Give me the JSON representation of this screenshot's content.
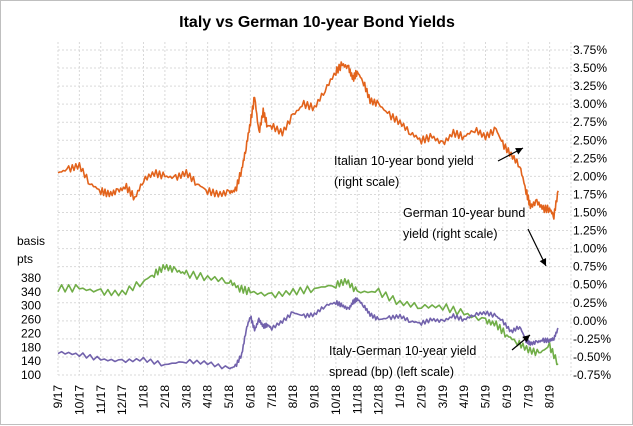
{
  "chart_data": {
    "type": "line",
    "title": "Italy vs German 10-year Bond Yields",
    "x_tick_labels": [
      "9/17",
      "10/17",
      "11/17",
      "12/17",
      "1/18",
      "2/18",
      "3/18",
      "4/18",
      "5/18",
      "6/18",
      "7/18",
      "8/18",
      "9/18",
      "10/18",
      "11/18",
      "12/18",
      "1/19",
      "2/19",
      "3/19",
      "4/19",
      "5/19",
      "6/19",
      "7/19",
      "8/19"
    ],
    "right_axis": {
      "tick_labels": [
        "3.75%",
        "3.50%",
        "3.25%",
        "3.00%",
        "2.75%",
        "2.50%",
        "2.25%",
        "2.00%",
        "1.75%",
        "1.50%",
        "1.25%",
        "1.00%",
        "0.75%",
        "0.50%",
        "0.25%",
        "0.00%",
        "-0.25%",
        "-0.50%",
        "-0.75%"
      ],
      "ylim": [
        -0.75,
        3.75
      ],
      "unit": "%"
    },
    "left_axis": {
      "title_lines": [
        "basis",
        "pts"
      ],
      "tick_labels": [
        "380",
        "340",
        "300",
        "260",
        "220",
        "180",
        "140",
        "100"
      ],
      "ylim": [
        100,
        380
      ]
    },
    "series": [
      {
        "name": "Italian 10-year bond yield",
        "axis": "right",
        "color": "#e2631c",
        "x": [
          0,
          0.5,
          1,
          1.5,
          2,
          2.4,
          2.8,
          3.2,
          3.6,
          4,
          4.5,
          5,
          5.5,
          6,
          6.5,
          7,
          7.5,
          8,
          8.3,
          8.6,
          8.8,
          9.0,
          9.2,
          9.4,
          9.6,
          9.8,
          10,
          10.5,
          11,
          11.5,
          12,
          12.5,
          13,
          13.3,
          13.6,
          13.8,
          14,
          14.3,
          14.6,
          15,
          15.5,
          16,
          16.5,
          17,
          17.5,
          18,
          18.5,
          19,
          19.5,
          20,
          20.5,
          20.8,
          21.2,
          21.6,
          21.9,
          22.1,
          22.4,
          22.7,
          23,
          23.2,
          23.4
        ],
        "y": [
          2.05,
          2.1,
          2.15,
          1.9,
          1.8,
          1.75,
          1.8,
          1.85,
          1.7,
          1.95,
          2.05,
          2.0,
          1.98,
          2.05,
          1.9,
          1.8,
          1.75,
          1.78,
          1.8,
          2.1,
          2.4,
          2.75,
          3.1,
          2.6,
          2.9,
          2.7,
          2.7,
          2.6,
          2.85,
          3.0,
          2.95,
          3.2,
          3.45,
          3.55,
          3.5,
          3.35,
          3.45,
          3.3,
          3.05,
          3.0,
          2.85,
          2.75,
          2.6,
          2.5,
          2.55,
          2.45,
          2.6,
          2.55,
          2.65,
          2.55,
          2.65,
          2.45,
          2.3,
          2.15,
          1.8,
          1.58,
          1.65,
          1.55,
          1.55,
          1.45,
          1.8
        ]
      },
      {
        "name": "German 10-year bund yield",
        "axis": "right",
        "color": "#70ad47",
        "x": [
          0,
          1,
          2,
          3,
          4,
          4.5,
          5,
          5.5,
          6,
          7,
          8,
          8.5,
          9,
          10,
          11,
          12,
          13,
          13.5,
          14,
          15,
          16,
          17,
          18,
          19,
          20,
          20.5,
          21,
          21.5,
          22,
          22.5,
          23,
          23.4
        ],
        "y": [
          0.45,
          0.45,
          0.4,
          0.38,
          0.55,
          0.65,
          0.75,
          0.7,
          0.65,
          0.6,
          0.55,
          0.45,
          0.4,
          0.35,
          0.4,
          0.45,
          0.5,
          0.55,
          0.4,
          0.4,
          0.25,
          0.2,
          0.2,
          0.1,
          0.0,
          -0.05,
          -0.2,
          -0.3,
          -0.4,
          -0.45,
          -0.35,
          -0.6
        ]
      },
      {
        "name": "Italy-German 10-year yield spread (bp)",
        "axis": "left",
        "color": "#7262ac",
        "x": [
          0,
          1,
          2,
          3,
          4,
          5,
          6,
          7,
          8,
          8.3,
          8.6,
          8.8,
          9.0,
          9.2,
          9.4,
          9.6,
          9.8,
          10,
          10.5,
          11,
          11.5,
          12,
          12.5,
          13,
          13.3,
          13.6,
          13.8,
          14,
          14.3,
          14.6,
          15,
          15.5,
          16,
          16.5,
          17,
          17.5,
          18,
          18.5,
          19,
          19.5,
          20,
          20.5,
          20.8,
          21.2,
          21.6,
          21.9,
          22.1,
          22.4,
          22.7,
          23,
          23.2,
          23.4
        ],
        "y": [
          165,
          160,
          145,
          140,
          145,
          130,
          140,
          135,
          118,
          125,
          160,
          230,
          270,
          230,
          260,
          240,
          245,
          235,
          255,
          280,
          270,
          275,
          300,
          310,
          300,
          290,
          310,
          320,
          300,
          275,
          260,
          265,
          270,
          255,
          250,
          260,
          255,
          270,
          260,
          275,
          280,
          270,
          255,
          225,
          240,
          200,
          190,
          195,
          200,
          200,
          205,
          235
        ]
      }
    ],
    "annotations": [
      {
        "lines": [
          "Italian 10-year bond  yield",
          "(right scale)"
        ]
      },
      {
        "lines": [
          "German 10-year bund",
          "yield (right scale)"
        ]
      },
      {
        "lines": [
          "Italy-German 10-year yield",
          "spread (bp) (left scale)"
        ]
      }
    ]
  }
}
